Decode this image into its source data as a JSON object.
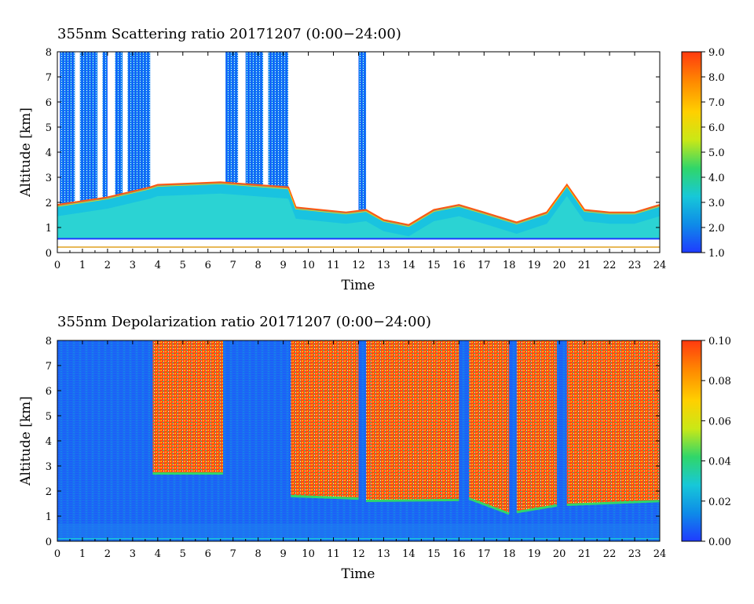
{
  "chart_data": [
    {
      "type": "heatmap",
      "title": "355nm Scattering ratio  20171207 (0:00−24:00)",
      "xlabel": "Time",
      "ylabel": "Altitude [km]",
      "xlim": [
        0,
        24
      ],
      "ylim": [
        0,
        8
      ],
      "x_ticks": [
        "0",
        "1",
        "2",
        "3",
        "4",
        "5",
        "6",
        "7",
        "8",
        "9",
        "10",
        "11",
        "12",
        "13",
        "14",
        "15",
        "16",
        "17",
        "18",
        "19",
        "20",
        "21",
        "22",
        "23",
        "24"
      ],
      "y_ticks": [
        "0",
        "1",
        "2",
        "3",
        "4",
        "5",
        "6",
        "7",
        "8"
      ],
      "colorbar": {
        "range": [
          1.0,
          9.0
        ],
        "ticks": [
          "1.0",
          "2.0",
          "3.0",
          "4.0",
          "5.0",
          "6.0",
          "7.0",
          "8.0",
          "9.0"
        ],
        "colors": [
          "#1f3bff",
          "#0e8be8",
          "#17c8d8",
          "#30d66a",
          "#c9e817",
          "#ffd000",
          "#ff8a00",
          "#ff3a10"
        ]
      },
      "features": {
        "boundary_layer_top_km": [
          {
            "t": 0,
            "km": 1.9
          },
          {
            "t": 2,
            "km": 2.2
          },
          {
            "t": 3.7,
            "km": 2.6
          },
          {
            "t": 4,
            "km": 2.7
          },
          {
            "t": 6.5,
            "km": 2.8
          },
          {
            "t": 9.2,
            "km": 2.6
          },
          {
            "t": 9.5,
            "km": 1.8
          },
          {
            "t": 11.5,
            "km": 1.6
          },
          {
            "t": 12.3,
            "km": 1.7
          },
          {
            "t": 13,
            "km": 1.3
          },
          {
            "t": 14,
            "km": 1.1
          },
          {
            "t": 15,
            "km": 1.7
          },
          {
            "t": 16,
            "km": 1.9
          },
          {
            "t": 17,
            "km": 1.6
          },
          {
            "t": 18.3,
            "km": 1.2
          },
          {
            "t": 19.5,
            "km": 1.6
          },
          {
            "t": 20.3,
            "km": 2.7
          },
          {
            "t": 21,
            "km": 1.7
          },
          {
            "t": 22,
            "km": 1.6
          },
          {
            "t": 23,
            "km": 1.6
          },
          {
            "t": 24,
            "km": 1.9
          }
        ],
        "high_cloud_columns_h": [
          [
            0.1,
            0.7
          ],
          [
            0.9,
            1.6
          ],
          [
            1.8,
            2.0
          ],
          [
            2.3,
            2.6
          ],
          [
            2.8,
            3.7
          ],
          [
            6.7,
            7.2
          ],
          [
            7.5,
            8.2
          ],
          [
            8.4,
            9.2
          ],
          [
            12.0,
            12.3
          ]
        ],
        "lowest_valid_km": 0.55
      }
    },
    {
      "type": "heatmap",
      "title": "355nm Depolarization ratio  20171207 (0:00−24:00)",
      "xlabel": "Time",
      "ylabel": "Altitude [km]",
      "xlim": [
        0,
        24
      ],
      "ylim": [
        0,
        8
      ],
      "x_ticks": [
        "0",
        "1",
        "2",
        "3",
        "4",
        "5",
        "6",
        "7",
        "8",
        "9",
        "10",
        "11",
        "12",
        "13",
        "14",
        "15",
        "16",
        "17",
        "18",
        "19",
        "20",
        "21",
        "22",
        "23",
        "24"
      ],
      "y_ticks": [
        "0",
        "1",
        "2",
        "3",
        "4",
        "5",
        "6",
        "7",
        "8"
      ],
      "colorbar": {
        "range": [
          0.0,
          0.1
        ],
        "ticks": [
          "0.00",
          "0.02",
          "0.04",
          "0.06",
          "0.08",
          "0.10"
        ],
        "colors": [
          "#1f3bff",
          "#0e8be8",
          "#17c8d8",
          "#30d66a",
          "#c9e817",
          "#ffd000",
          "#ff8a00",
          "#ff3a10"
        ]
      },
      "features": {
        "high_depol_blocks_h": [
          [
            3.8,
            6.6
          ],
          [
            9.3,
            12.0
          ],
          [
            12.3,
            16.0
          ],
          [
            16.4,
            18.0
          ],
          [
            18.3,
            19.9
          ],
          [
            20.3,
            24.0
          ]
        ],
        "high_depol_base_km": [
          {
            "t": 3.8,
            "km": 2.7
          },
          {
            "t": 6.6,
            "km": 2.7
          },
          {
            "t": 9.3,
            "km": 1.8
          },
          {
            "t": 12.0,
            "km": 1.7
          },
          {
            "t": 13.0,
            "km": 1.4
          },
          {
            "t": 15.0,
            "km": 1.5
          },
          {
            "t": 16.4,
            "km": 1.7
          },
          {
            "t": 18.0,
            "km": 1.1
          },
          {
            "t": 19.5,
            "km": 1.4
          },
          {
            "t": 21.0,
            "km": 1.5
          },
          {
            "t": 24.0,
            "km": 1.6
          }
        ]
      }
    }
  ]
}
